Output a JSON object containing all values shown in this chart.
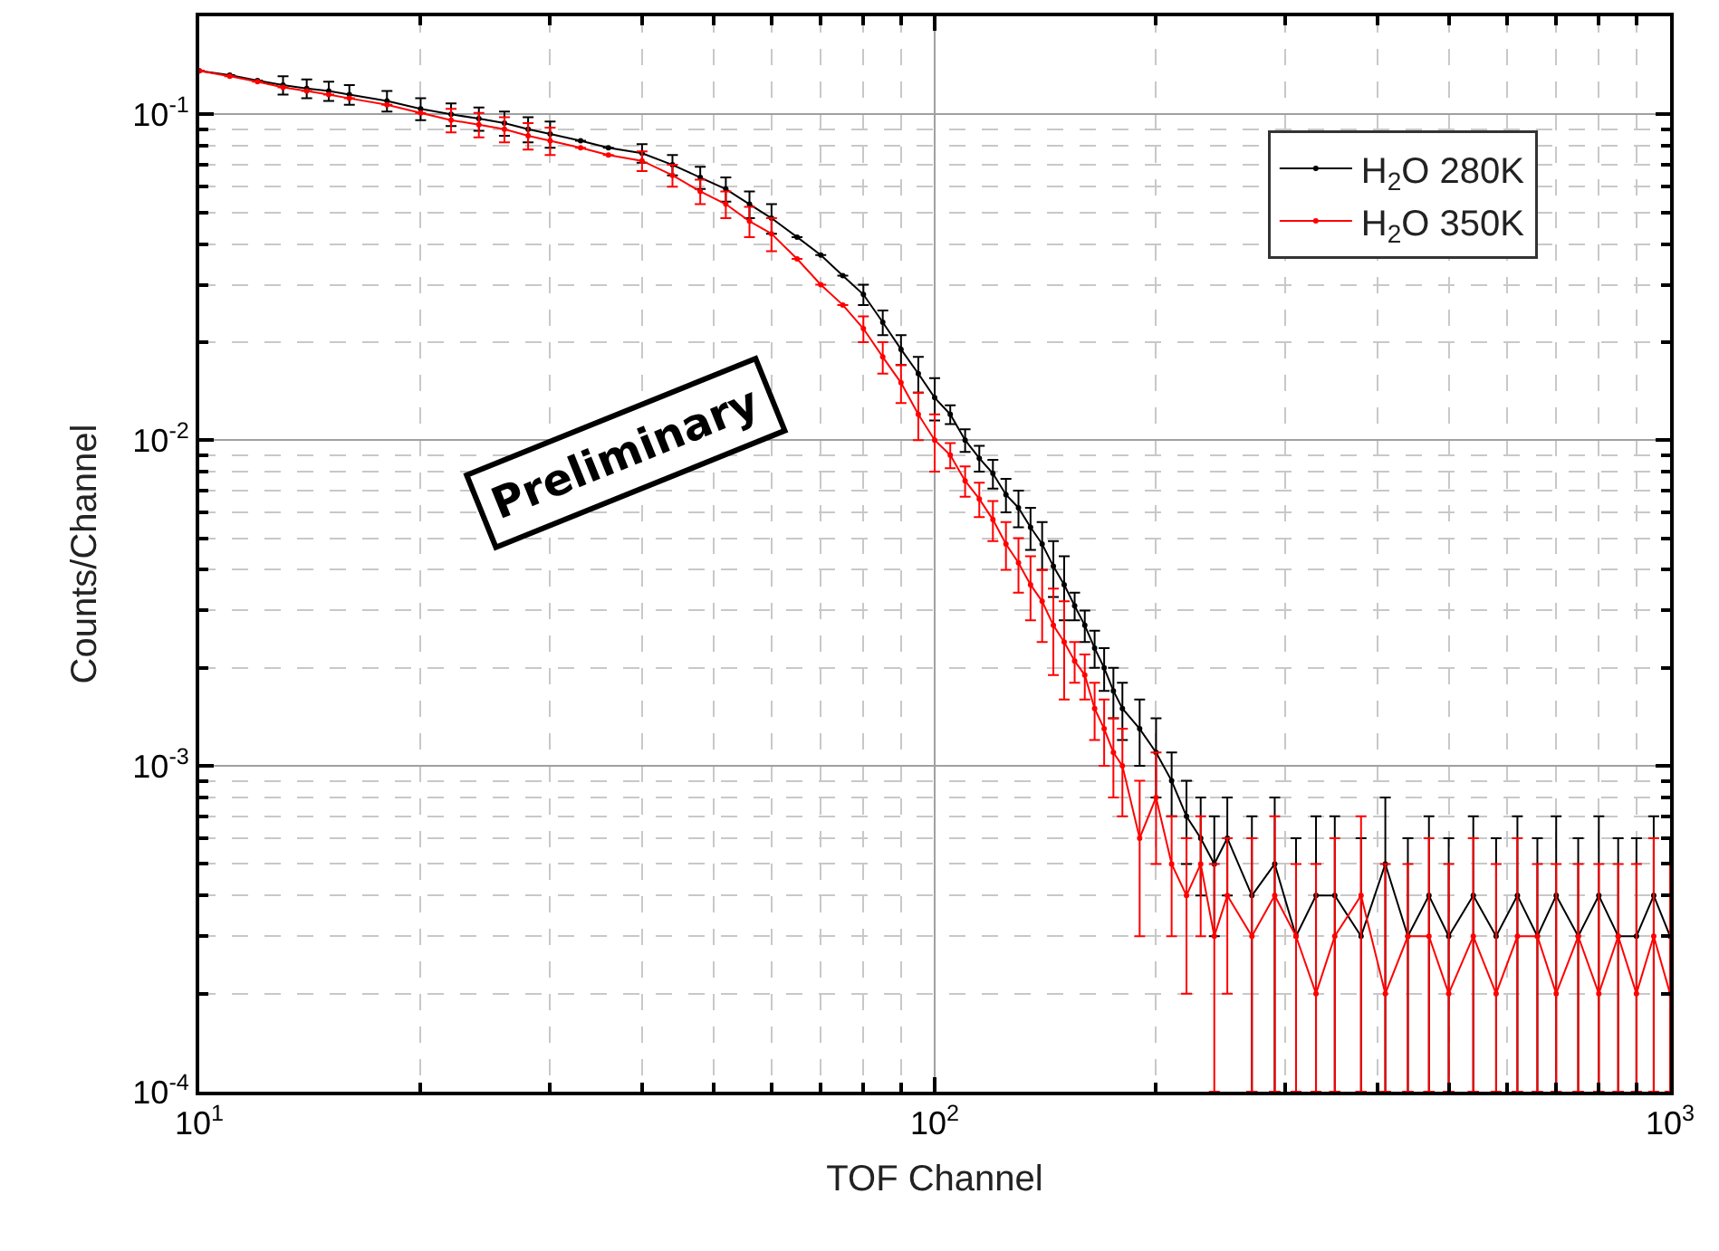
{
  "chart_data": {
    "type": "line",
    "xlabel": "TOF Channel",
    "ylabel": "Counts/Channel",
    "annotations": [
      "Preliminary"
    ],
    "log": "xy",
    "grid": true,
    "legend": "top right",
    "marker": "circle",
    "line_style": "solid",
    "xlim": [
      10,
      1000
    ],
    "xticks": [
      {
        "value": 10,
        "label": "10$^{1}$"
      },
      {
        "value": 100,
        "label": "10$^{2}$"
      },
      {
        "value": 1000,
        "label": "10$^{3}$"
      }
    ],
    "ylim": [
      0.0001,
      0.2
    ],
    "yticks": [
      {
        "value": 0.0001,
        "label": "10$^{-4}$"
      },
      {
        "value": 0.001,
        "label": "10$^{-3}$"
      },
      {
        "value": 0.01,
        "label": "10$^{-2}$"
      },
      {
        "value": 0.1,
        "label": "10$^{-1}$"
      }
    ],
    "x": [
      10,
      11,
      12,
      13,
      14,
      15,
      16,
      18,
      20,
      22,
      24,
      26,
      28,
      30,
      33,
      36,
      40,
      44,
      48,
      52,
      56,
      60,
      65,
      70,
      75,
      80,
      85,
      90,
      95,
      100,
      105,
      110,
      115,
      120,
      125,
      130,
      135,
      140,
      145,
      150,
      155,
      160,
      165,
      170,
      175,
      180,
      190,
      200,
      210,
      220,
      230,
      240,
      250,
      270,
      290,
      310,
      330,
      350,
      380,
      410,
      440,
      470,
      500,
      540,
      580,
      620,
      660,
      700,
      750,
      800,
      850,
      900,
      950,
      1000
    ],
    "series": [
      {
        "name": "H$_{2}$O 280K",
        "color": "#000000",
        "values": [
          0.136,
          0.132,
          0.127,
          0.123,
          0.12,
          0.118,
          0.115,
          0.11,
          0.104,
          0.1,
          0.097,
          0.094,
          0.09,
          0.087,
          0.083,
          0.079,
          0.076,
          0.07,
          0.064,
          0.059,
          0.053,
          0.048,
          0.042,
          0.037,
          0.032,
          0.028,
          0.023,
          0.019,
          0.016,
          0.0135,
          0.012,
          0.01,
          0.0088,
          0.0079,
          0.0068,
          0.0062,
          0.0054,
          0.0048,
          0.0041,
          0.0036,
          0.0031,
          0.0027,
          0.0023,
          0.002,
          0.0017,
          0.0015,
          0.0013,
          0.0011,
          0.0009,
          0.0007,
          0.0006,
          0.0005,
          0.0006,
          0.0004,
          0.0005,
          0.0003,
          0.0004,
          0.0004,
          0.0003,
          0.0005,
          0.0003,
          0.0004,
          0.0003,
          0.0004,
          0.0003,
          0.0004,
          0.0003,
          0.0004,
          0.0003,
          0.0004,
          0.0003,
          0.0003,
          0.0004,
          0.0003
        ],
        "errors": [
          null,
          null,
          null,
          0.008,
          0.008,
          0.008,
          0.008,
          0.008,
          0.008,
          0.008,
          0.008,
          0.008,
          0.008,
          0.008,
          null,
          null,
          0.005,
          0.005,
          0.005,
          0.005,
          0.005,
          0.005,
          null,
          null,
          null,
          0.002,
          0.002,
          0.002,
          0.002,
          0.002,
          0.0008,
          0.0008,
          0.0008,
          0.0008,
          0.0008,
          0.0008,
          0.0008,
          0.0008,
          0.0008,
          0.0008,
          0.0003,
          0.0003,
          0.0003,
          0.0003,
          0.0003,
          0.0003,
          0.0003,
          0.0003,
          0.0002,
          0.0002,
          0.0002,
          0.0002,
          0.0002,
          [
            0.0001,
            0.0007
          ],
          [
            0.0001,
            0.0008
          ],
          [
            0.0001,
            0.0006
          ],
          [
            0.0001,
            0.0007
          ],
          [
            0.0001,
            0.0007
          ],
          [
            0.0001,
            0.0006
          ],
          [
            0.0001,
            0.0008
          ],
          [
            0.0001,
            0.0006
          ],
          [
            0.0001,
            0.0007
          ],
          [
            0.0001,
            0.0006
          ],
          [
            0.0001,
            0.0007
          ],
          [
            0.0001,
            0.0006
          ],
          [
            0.0001,
            0.0007
          ],
          [
            0.0001,
            0.0006
          ],
          [
            0.0001,
            0.0007
          ],
          [
            0.0001,
            0.0006
          ],
          [
            0.0001,
            0.0007
          ],
          [
            0.0001,
            0.0006
          ],
          [
            0.0001,
            0.0006
          ],
          [
            0.0001,
            0.0007
          ],
          [
            0.0001,
            0.0006
          ]
        ]
      },
      {
        "name": "H$_{2}$O 350K",
        "color": "#ff0000",
        "values": [
          0.136,
          0.131,
          0.126,
          0.121,
          0.118,
          0.115,
          0.112,
          0.107,
          0.101,
          0.096,
          0.093,
          0.09,
          0.086,
          0.083,
          0.079,
          0.075,
          0.072,
          0.065,
          0.058,
          0.053,
          0.047,
          0.043,
          0.036,
          0.03,
          0.026,
          0.022,
          0.018,
          0.015,
          0.012,
          0.01,
          0.009,
          0.0075,
          0.0066,
          0.0057,
          0.0048,
          0.0042,
          0.0036,
          0.0032,
          0.0027,
          0.0024,
          0.0021,
          0.0019,
          0.0015,
          0.0013,
          0.0011,
          0.001,
          0.0006,
          0.0008,
          0.0005,
          0.0004,
          0.0005,
          0.0003,
          0.0004,
          0.0003,
          0.0004,
          0.0003,
          0.0002,
          0.0003,
          0.0004,
          0.0002,
          0.0003,
          0.0003,
          0.0002,
          0.0003,
          0.0002,
          0.0003,
          0.0003,
          0.0002,
          0.0003,
          0.0002,
          0.0003,
          0.0002,
          0.0003,
          0.0002
        ],
        "errors": [
          null,
          null,
          null,
          null,
          null,
          null,
          null,
          null,
          null,
          0.008,
          0.008,
          0.008,
          0.008,
          0.008,
          null,
          null,
          0.005,
          0.005,
          0.005,
          0.005,
          0.005,
          0.005,
          null,
          null,
          null,
          0.002,
          0.002,
          0.002,
          0.002,
          0.002,
          0.0008,
          0.0008,
          0.0008,
          0.0008,
          0.0008,
          0.0008,
          0.0008,
          0.0008,
          0.0008,
          0.0008,
          0.0003,
          0.0003,
          0.0003,
          0.0003,
          0.0003,
          0.0003,
          0.0003,
          0.0003,
          0.0002,
          0.0002,
          0.0002,
          0.0002,
          0.0002,
          [
            0.0001,
            0.0006
          ],
          [
            0.0001,
            0.0007
          ],
          [
            0.0001,
            0.0005
          ],
          [
            0.0001,
            0.0005
          ],
          [
            0.0001,
            0.0006
          ],
          [
            0.0001,
            0.0007
          ],
          [
            0.0001,
            0.0005
          ],
          [
            0.0001,
            0.0005
          ],
          [
            0.0001,
            0.0006
          ],
          [
            0.0001,
            0.0005
          ],
          [
            0.0001,
            0.0006
          ],
          [
            0.0001,
            0.0005
          ],
          [
            0.0001,
            0.0006
          ],
          [
            0.0001,
            0.0005
          ],
          [
            0.0001,
            0.0005
          ],
          [
            0.0001,
            0.0005
          ],
          [
            0.0001,
            0.0005
          ],
          [
            0.0001,
            0.0005
          ],
          [
            0.0001,
            0.0005
          ],
          [
            0.0001,
            0.0006
          ],
          [
            0.0001,
            0.0005
          ]
        ]
      }
    ]
  }
}
